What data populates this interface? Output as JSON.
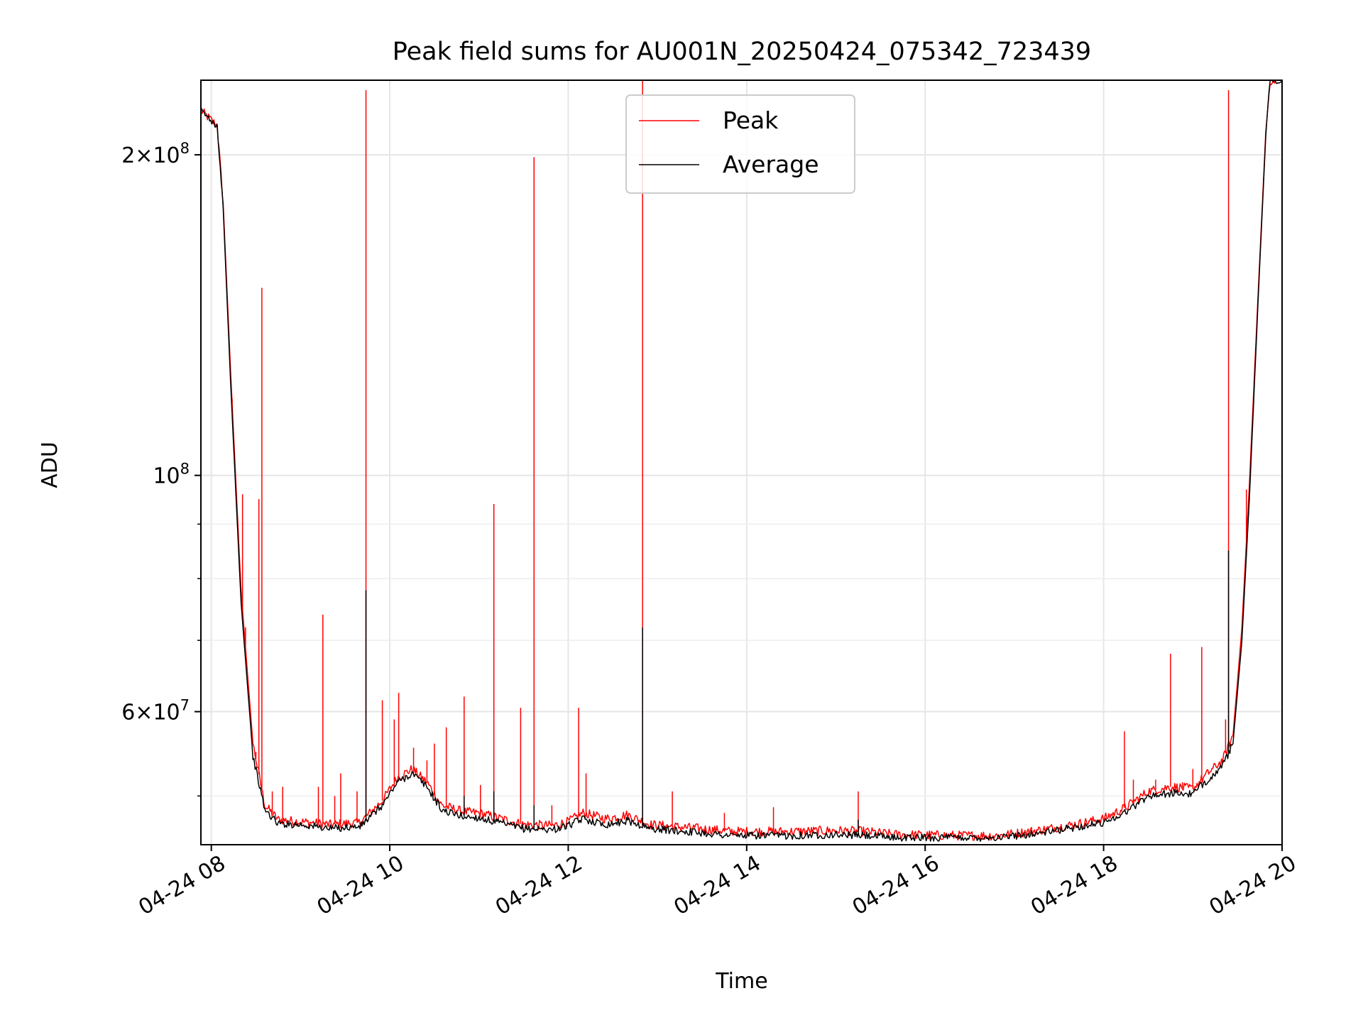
{
  "chart_data": {
    "type": "line",
    "title": "Peak field sums for AU001N_20250424_075342_723439",
    "xlabel": "Time",
    "ylabel": "ADU",
    "yscale": "log",
    "xlim": [
      "2025-04-24 07:53",
      "2025-04-24 20:00"
    ],
    "ylim": [
      45000000,
      235000000
    ],
    "grid": true,
    "legend_position": "top-center",
    "x_ticks": [
      {
        "t": "2025-04-24 08:00",
        "label": "04-24 08"
      },
      {
        "t": "2025-04-24 10:00",
        "label": "04-24 10"
      },
      {
        "t": "2025-04-24 12:00",
        "label": "04-24 12"
      },
      {
        "t": "2025-04-24 14:00",
        "label": "04-24 14"
      },
      {
        "t": "2025-04-24 16:00",
        "label": "04-24 16"
      },
      {
        "t": "2025-04-24 18:00",
        "label": "04-24 18"
      },
      {
        "t": "2025-04-24 20:00",
        "label": "04-24 20"
      }
    ],
    "y_major_ticks": [
      {
        "value": 60000000,
        "mantissa": "6",
        "base": "10",
        "exp": "7"
      },
      {
        "value": 100000000,
        "mantissa": "",
        "base": "10",
        "exp": "8"
      },
      {
        "value": 200000000,
        "mantissa": "2",
        "base": "10",
        "exp": "8"
      }
    ],
    "y_minor_ticks": [
      50000000,
      70000000,
      80000000,
      90000000
    ],
    "series": [
      {
        "name": "Peak",
        "color": "#ff0000",
        "baseline": [
          [
            "2025-04-24 07:53",
            220000000
          ],
          [
            "2025-04-24 08:04",
            213000000
          ],
          [
            "2025-04-24 08:08",
            180000000
          ],
          [
            "2025-04-24 08:13",
            125000000
          ],
          [
            "2025-04-24 08:20",
            78000000
          ],
          [
            "2025-04-24 08:28",
            56000000
          ],
          [
            "2025-04-24 08:36",
            49000000
          ],
          [
            "2025-04-24 08:45",
            47500000
          ],
          [
            "2025-04-24 09:00",
            47300000
          ],
          [
            "2025-04-24 09:20",
            47000000
          ],
          [
            "2025-04-24 09:40",
            47200000
          ],
          [
            "2025-04-24 09:55",
            49500000
          ],
          [
            "2025-04-24 10:05",
            52000000
          ],
          [
            "2025-04-24 10:15",
            53000000
          ],
          [
            "2025-04-24 10:25",
            51500000
          ],
          [
            "2025-04-24 10:35",
            49000000
          ],
          [
            "2025-04-24 10:50",
            48300000
          ],
          [
            "2025-04-24 11:00",
            48200000
          ],
          [
            "2025-04-24 11:10",
            47800000
          ],
          [
            "2025-04-24 11:30",
            47000000
          ],
          [
            "2025-04-24 11:50",
            46900000
          ],
          [
            "2025-04-24 12:00",
            47300000
          ],
          [
            "2025-04-24 12:10",
            48200000
          ],
          [
            "2025-04-24 12:25",
            47600000
          ],
          [
            "2025-04-24 12:40",
            48000000
          ],
          [
            "2025-04-24 12:55",
            47000000
          ],
          [
            "2025-04-24 13:20",
            46700000
          ],
          [
            "2025-04-24 13:50",
            46300000
          ],
          [
            "2025-04-24 14:30",
            46300000
          ],
          [
            "2025-04-24 15:00",
            46400000
          ],
          [
            "2025-04-24 15:20",
            46300000
          ],
          [
            "2025-04-24 15:40",
            46000000
          ],
          [
            "2025-04-24 16:20",
            45900000
          ],
          [
            "2025-04-24 16:50",
            45900000
          ],
          [
            "2025-04-24 17:20",
            46500000
          ],
          [
            "2025-04-24 17:40",
            47000000
          ],
          [
            "2025-04-24 18:00",
            47600000
          ],
          [
            "2025-04-24 18:15",
            48800000
          ],
          [
            "2025-04-24 18:30",
            50500000
          ],
          [
            "2025-04-24 18:45",
            51000000
          ],
          [
            "2025-04-24 19:00",
            50800000
          ],
          [
            "2025-04-24 19:10",
            52500000
          ],
          [
            "2025-04-24 19:20",
            54000000
          ],
          [
            "2025-04-24 19:27",
            57000000
          ],
          [
            "2025-04-24 19:33",
            72000000
          ],
          [
            "2025-04-24 19:38",
            98000000
          ],
          [
            "2025-04-24 19:45",
            160000000
          ],
          [
            "2025-04-24 19:49",
            210000000
          ],
          [
            "2025-04-24 19:52",
            235000000
          ],
          [
            "2025-04-24 20:00",
            235000000
          ]
        ],
        "spikes": [
          [
            "2025-04-24 08:14",
            118000000
          ],
          [
            "2025-04-24 08:21",
            96000000
          ],
          [
            "2025-04-24 08:23",
            72000000
          ],
          [
            "2025-04-24 08:30",
            55000000
          ],
          [
            "2025-04-24 08:32",
            95000000
          ],
          [
            "2025-04-24 08:34",
            150000000
          ],
          [
            "2025-04-24 08:41",
            50500000
          ],
          [
            "2025-04-24 08:48",
            51000000
          ],
          [
            "2025-04-24 09:12",
            51000000
          ],
          [
            "2025-04-24 09:15",
            74000000
          ],
          [
            "2025-04-24 09:23",
            50000000
          ],
          [
            "2025-04-24 09:27",
            52500000
          ],
          [
            "2025-04-24 09:38",
            50500000
          ],
          [
            "2025-04-24 09:44",
            230000000
          ],
          [
            "2025-04-24 09:55",
            61500000
          ],
          [
            "2025-04-24 10:03",
            59000000
          ],
          [
            "2025-04-24 10:06",
            62500000
          ],
          [
            "2025-04-24 10:16",
            55500000
          ],
          [
            "2025-04-24 10:25",
            54000000
          ],
          [
            "2025-04-24 10:30",
            56000000
          ],
          [
            "2025-04-24 10:38",
            58000000
          ],
          [
            "2025-04-24 10:50",
            49000000
          ],
          [
            "2025-04-24 10:50",
            62000000
          ],
          [
            "2025-04-24 11:01",
            51200000
          ],
          [
            "2025-04-24 11:10",
            94000000
          ],
          [
            "2025-04-24 11:28",
            60500000
          ],
          [
            "2025-04-24 11:37",
            199000000
          ],
          [
            "2025-04-24 11:49",
            49000000
          ],
          [
            "2025-04-24 12:07",
            60500000
          ],
          [
            "2025-04-24 12:12",
            52500000
          ],
          [
            "2025-04-24 12:50",
            236000000
          ],
          [
            "2025-04-24 13:10",
            50500000
          ],
          [
            "2025-04-24 13:45",
            48200000
          ],
          [
            "2025-04-24 14:18",
            48800000
          ],
          [
            "2025-04-24 15:15",
            50500000
          ],
          [
            "2025-04-24 17:50",
            47400000
          ],
          [
            "2025-04-24 18:14",
            57500000
          ],
          [
            "2025-04-24 18:20",
            51800000
          ],
          [
            "2025-04-24 18:35",
            51800000
          ],
          [
            "2025-04-24 18:45",
            68000000
          ],
          [
            "2025-04-24 18:53",
            51500000
          ],
          [
            "2025-04-24 19:00",
            53000000
          ],
          [
            "2025-04-24 19:06",
            69000000
          ],
          [
            "2025-04-24 19:13",
            53000000
          ],
          [
            "2025-04-24 19:22",
            59000000
          ],
          [
            "2025-04-24 19:24",
            230000000
          ],
          [
            "2025-04-24 19:36",
            97000000
          ]
        ]
      },
      {
        "name": "Average",
        "color": "#000000",
        "baseline": [
          [
            "2025-04-24 07:53",
            220000000
          ],
          [
            "2025-04-24 08:04",
            213000000
          ],
          [
            "2025-04-24 08:08",
            178000000
          ],
          [
            "2025-04-24 08:13",
            122000000
          ],
          [
            "2025-04-24 08:20",
            76000000
          ],
          [
            "2025-04-24 08:28",
            54500000
          ],
          [
            "2025-04-24 08:36",
            48500000
          ],
          [
            "2025-04-24 08:45",
            47100000
          ],
          [
            "2025-04-24 09:00",
            47000000
          ],
          [
            "2025-04-24 09:20",
            46600000
          ],
          [
            "2025-04-24 09:40",
            46800000
          ],
          [
            "2025-04-24 09:55",
            49000000
          ],
          [
            "2025-04-24 10:05",
            51500000
          ],
          [
            "2025-04-24 10:15",
            52500000
          ],
          [
            "2025-04-24 10:25",
            51000000
          ],
          [
            "2025-04-24 10:35",
            48500000
          ],
          [
            "2025-04-24 10:50",
            47800000
          ],
          [
            "2025-04-24 11:00",
            47700000
          ],
          [
            "2025-04-24 11:10",
            47300000
          ],
          [
            "2025-04-24 11:30",
            46600000
          ],
          [
            "2025-04-24 11:50",
            46500000
          ],
          [
            "2025-04-24 12:00",
            46900000
          ],
          [
            "2025-04-24 12:10",
            47600000
          ],
          [
            "2025-04-24 12:25",
            47000000
          ],
          [
            "2025-04-24 12:40",
            47400000
          ],
          [
            "2025-04-24 12:55",
            46600000
          ],
          [
            "2025-04-24 13:20",
            46300000
          ],
          [
            "2025-04-24 13:50",
            45900000
          ],
          [
            "2025-04-24 14:30",
            45900000
          ],
          [
            "2025-04-24 15:00",
            46000000
          ],
          [
            "2025-04-24 15:20",
            45900000
          ],
          [
            "2025-04-24 15:40",
            45700000
          ],
          [
            "2025-04-24 16:20",
            45700000
          ],
          [
            "2025-04-24 16:50",
            45700000
          ],
          [
            "2025-04-24 17:20",
            46200000
          ],
          [
            "2025-04-24 17:40",
            46700000
          ],
          [
            "2025-04-24 18:00",
            47200000
          ],
          [
            "2025-04-24 18:15",
            48300000
          ],
          [
            "2025-04-24 18:30",
            50000000
          ],
          [
            "2025-04-24 18:45",
            50300000
          ],
          [
            "2025-04-24 19:00",
            50200000
          ],
          [
            "2025-04-24 19:10",
            51800000
          ],
          [
            "2025-04-24 19:20",
            53300000
          ],
          [
            "2025-04-24 19:27",
            56000000
          ],
          [
            "2025-04-24 19:33",
            70000000
          ],
          [
            "2025-04-24 19:38",
            95000000
          ],
          [
            "2025-04-24 19:45",
            158000000
          ],
          [
            "2025-04-24 19:49",
            208000000
          ],
          [
            "2025-04-24 19:52",
            235000000
          ],
          [
            "2025-04-24 20:00",
            235000000
          ]
        ],
        "spikes": [
          [
            "2025-04-24 09:44",
            78000000
          ],
          [
            "2025-04-24 10:50",
            50000000
          ],
          [
            "2025-04-24 11:10",
            50500000
          ],
          [
            "2025-04-24 11:37",
            49000000
          ],
          [
            "2025-04-24 12:50",
            72000000
          ],
          [
            "2025-04-24 15:15",
            47500000
          ],
          [
            "2025-04-24 19:24",
            85000000
          ]
        ]
      }
    ]
  }
}
